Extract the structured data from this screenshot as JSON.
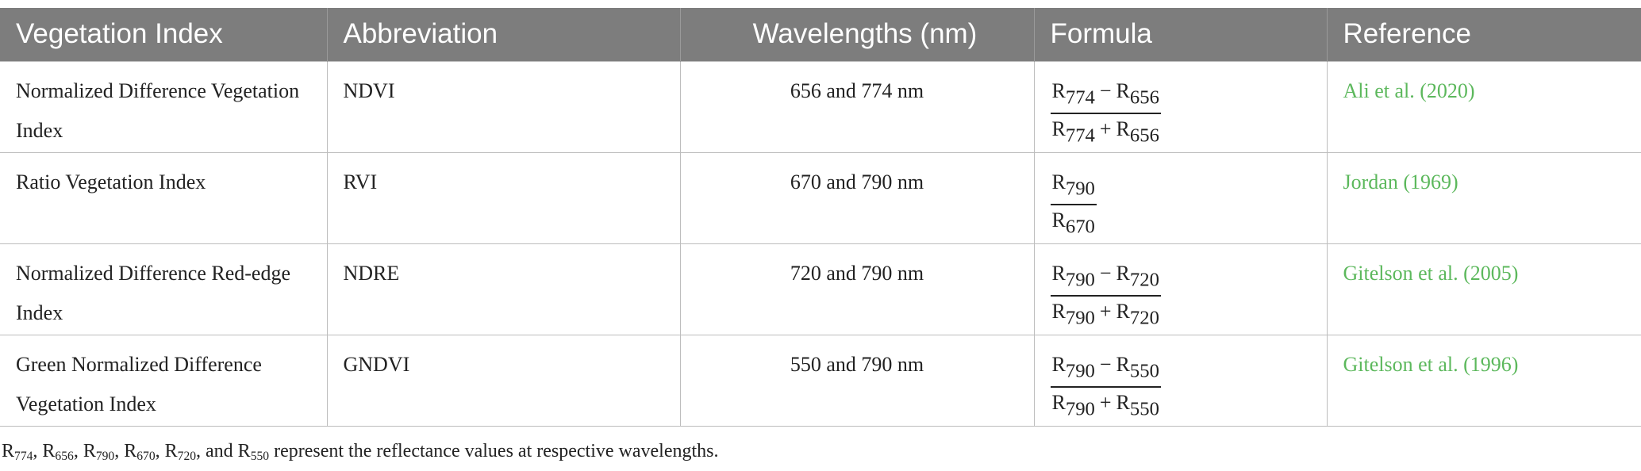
{
  "table": {
    "header": [
      "Vegetation Index",
      "Abbreviation",
      "Wavelengths (nm)",
      "Formula",
      "Reference"
    ],
    "rows": [
      {
        "index": "Normalized Difference Vegetation Index",
        "abbreviation": "NDVI",
        "wavelengths": "656 and 774 nm",
        "formula": {
          "numerator": [
            {
              "symbol": "R",
              "sub": "774"
            },
            {
              "op": "−"
            },
            {
              "symbol": "R",
              "sub": "656"
            }
          ],
          "denominator": [
            {
              "symbol": "R",
              "sub": "774"
            },
            {
              "op": "+"
            },
            {
              "symbol": "R",
              "sub": "656"
            }
          ]
        },
        "reference": "Ali et al. (2020)"
      },
      {
        "index": "Ratio Vegetation Index",
        "abbreviation": "RVI",
        "wavelengths": "670 and 790 nm",
        "formula": {
          "numerator": [
            {
              "symbol": "R",
              "sub": "790"
            }
          ],
          "denominator": [
            {
              "symbol": "R",
              "sub": "670"
            }
          ]
        },
        "reference": "Jordan (1969)"
      },
      {
        "index": "Normalized Difference Red-edge Index",
        "abbreviation": "NDRE",
        "wavelengths": "720 and 790 nm",
        "formula": {
          "numerator": [
            {
              "symbol": "R",
              "sub": "790"
            },
            {
              "op": "−"
            },
            {
              "symbol": "R",
              "sub": "720"
            }
          ],
          "denominator": [
            {
              "symbol": "R",
              "sub": "790"
            },
            {
              "op": "+"
            },
            {
              "symbol": "R",
              "sub": "720"
            }
          ]
        },
        "reference": "Gitelson et al. (2005)"
      },
      {
        "index": "Green Normalized Difference Vegetation Index",
        "abbreviation": "GNDVI",
        "wavelengths": "550 and 790 nm",
        "formula": {
          "numerator": [
            {
              "symbol": "R",
              "sub": "790"
            },
            {
              "op": "−"
            },
            {
              "symbol": "R",
              "sub": "550"
            }
          ],
          "denominator": [
            {
              "symbol": "R",
              "sub": "790"
            },
            {
              "op": "+"
            },
            {
              "symbol": "R",
              "sub": "550"
            }
          ]
        },
        "reference": "Gitelson et al. (1996)"
      }
    ]
  },
  "footnote": [
    {
      "text": "R"
    },
    {
      "sub": "774"
    },
    {
      "text": ", R"
    },
    {
      "sub": "656"
    },
    {
      "text": ", R"
    },
    {
      "sub": "790"
    },
    {
      "text": ", R"
    },
    {
      "sub": "670"
    },
    {
      "text": ", R"
    },
    {
      "sub": "720"
    },
    {
      "text": ", and R"
    },
    {
      "sub": "550"
    },
    {
      "text": " represent the reflectance values at respective wavelengths."
    }
  ]
}
